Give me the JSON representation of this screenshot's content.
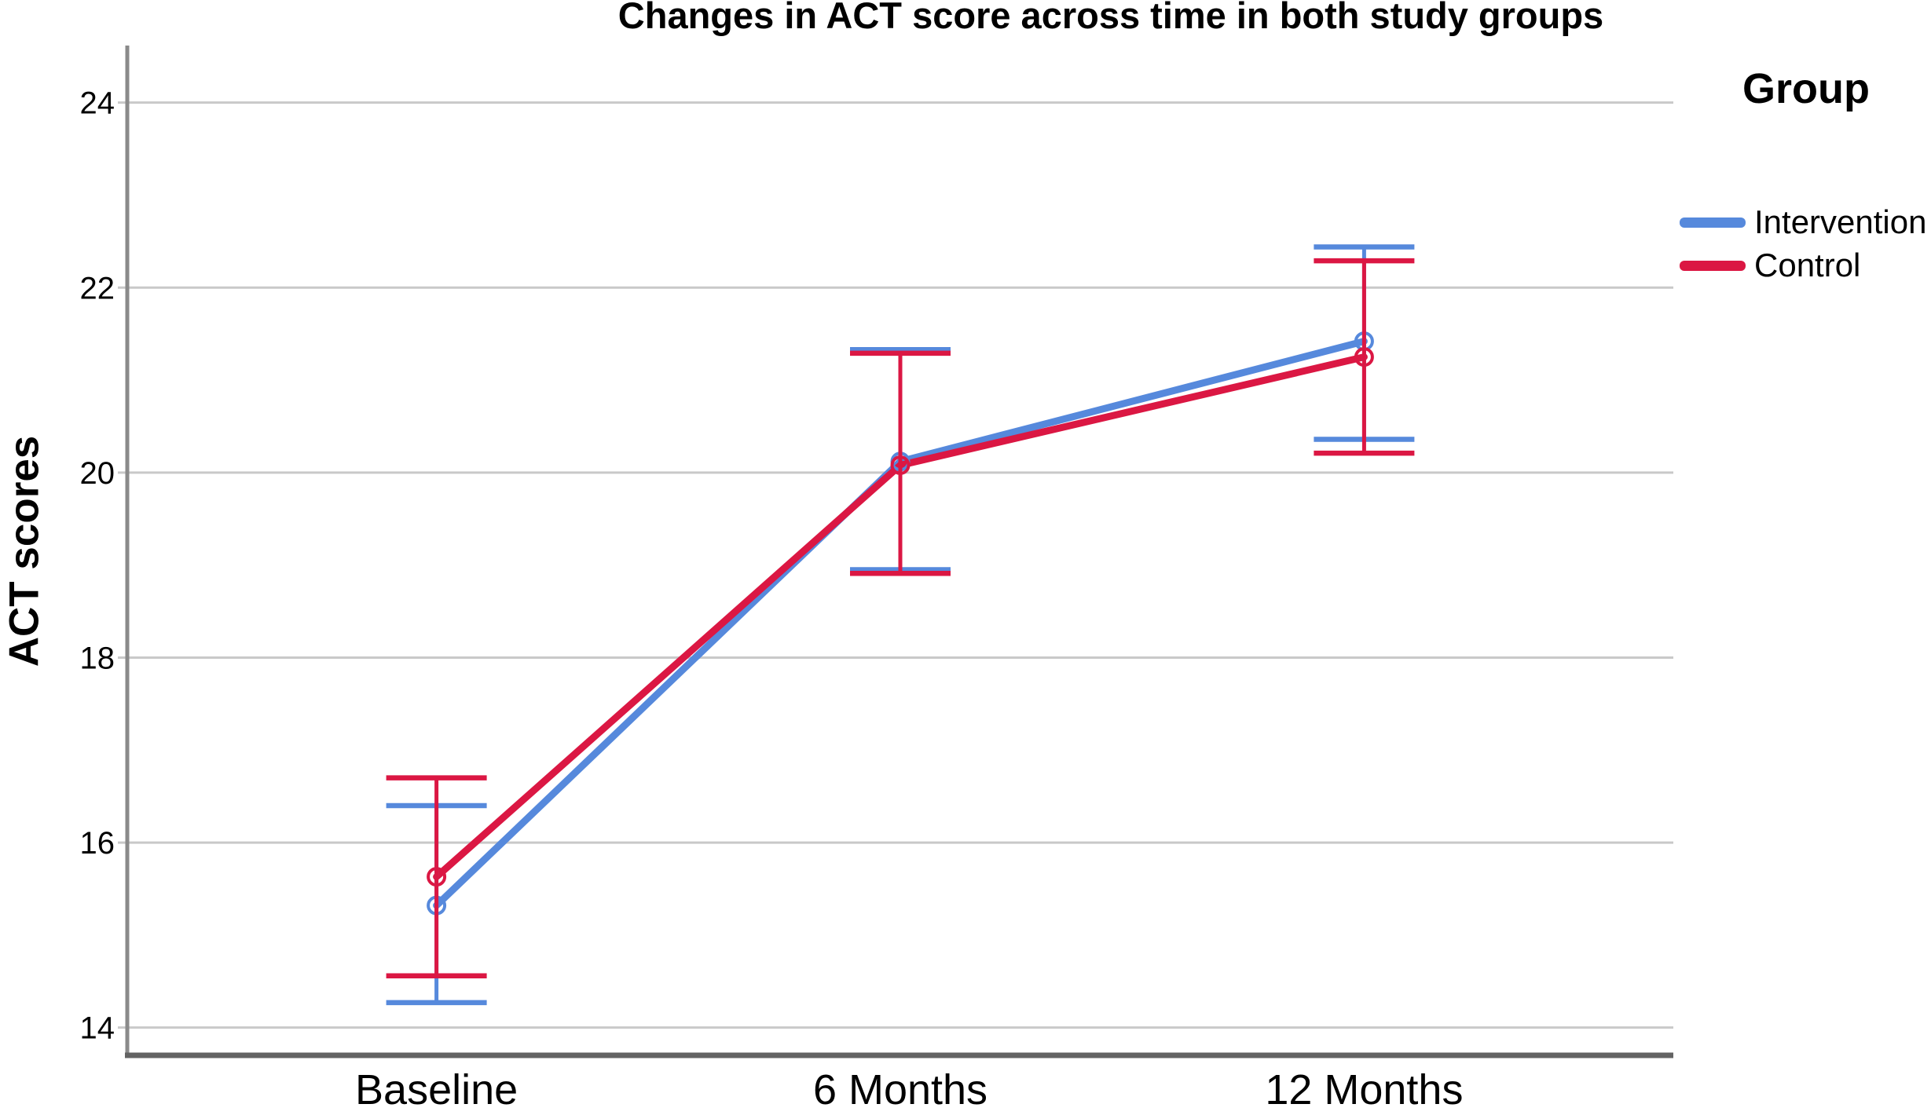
{
  "legend": {
    "title": "Group",
    "items": [
      {
        "label": "Intervention",
        "color": "#5689DC"
      },
      {
        "label": "Control",
        "color": "#DB1743"
      }
    ]
  },
  "chart_data": {
    "type": "line",
    "title": "Changes in ACT score across time in both study groups",
    "xlabel": "",
    "ylabel": "ACT scores",
    "categories": [
      "Baseline",
      "6 Months",
      "12 Months"
    ],
    "y_ticks": [
      24,
      22,
      20,
      18,
      16,
      14
    ],
    "ylim": [
      13.7,
      24.6
    ],
    "grid": true,
    "legend_position": "top-right",
    "marker": "open-circle",
    "grid_color": "#C9C9C9",
    "y_axis_color": "#8A8A8A",
    "x_axis_color": "#636363",
    "series": [
      {
        "name": "Intervention",
        "color": "#5689DC",
        "values": [
          15.32,
          20.12,
          21.42
        ],
        "ci_low": [
          14.27,
          18.95,
          20.36
        ],
        "ci_high": [
          16.4,
          21.33,
          22.44
        ]
      },
      {
        "name": "Control",
        "color": "#DB1743",
        "values": [
          15.63,
          20.08,
          21.25
        ],
        "ci_low": [
          14.56,
          18.91,
          20.21
        ],
        "ci_high": [
          16.7,
          21.29,
          22.29
        ]
      }
    ]
  }
}
